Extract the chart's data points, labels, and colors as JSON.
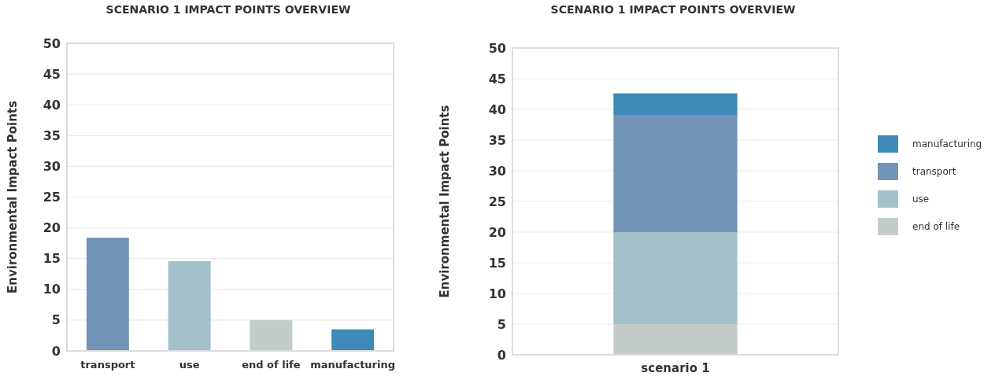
{
  "chart_data": [
    {
      "type": "bar",
      "title": "SCENARIO 1 IMPACT POINTS OVERVIEW",
      "ylabel": "Environmental Impact Points",
      "categories": [
        "transport",
        "use",
        "end of life",
        "manufacturing"
      ],
      "values": [
        18.4,
        14.6,
        5,
        3.5
      ],
      "colors": [
        "#7395b8",
        "#a2c1c8",
        "#c3ccc9",
        "#3d8bb6"
      ],
      "ylim": [
        0,
        50
      ],
      "yticks": [
        0,
        5,
        10,
        15,
        20,
        25,
        30,
        35,
        40,
        45,
        50
      ],
      "grid": "y"
    },
    {
      "type": "bar",
      "title": "SCENARIO 1 IMPACT POINTS OVERVIEW",
      "ylabel": "Environmental Impact Points",
      "categories": [
        "scenario 1"
      ],
      "stacked": true,
      "series": [
        {
          "name": "end of life",
          "color": "#c3ccc9",
          "values": [
            5
          ]
        },
        {
          "name": "use",
          "color": "#a2c1c8",
          "values": [
            15
          ]
        },
        {
          "name": "transport",
          "color": "#7395b8",
          "values": [
            19
          ]
        },
        {
          "name": "manufacturing",
          "color": "#3d8bb6",
          "values": [
            3.6
          ]
        }
      ],
      "ylim": [
        0,
        50
      ],
      "yticks": [
        0,
        5,
        10,
        15,
        20,
        25,
        30,
        35,
        40,
        45,
        50
      ],
      "grid": "y",
      "legend": "right"
    }
  ]
}
